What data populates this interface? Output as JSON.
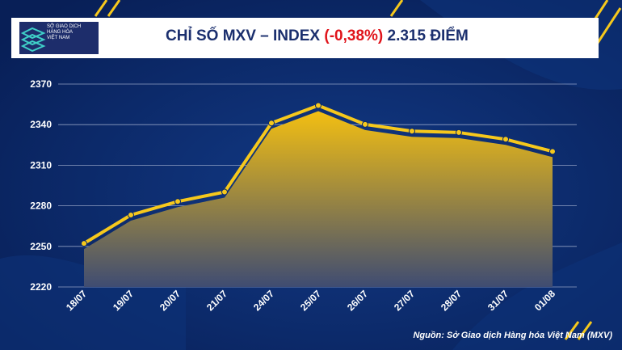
{
  "header": {
    "logo_lines": [
      "SỞ GIAO DỊCH",
      "HÀNG HÓA",
      "VIỆT NAM"
    ],
    "title_prefix": "CHỈ SỐ MXV – INDEX ",
    "title_change": "(-0,38%)",
    "title_suffix": " 2.315 ĐIỂM"
  },
  "source": "Nguồn: Sở Giao dịch Hàng hóa Việt Nam (MXV)",
  "colors": {
    "background": "#0b2a6b",
    "line": "#f6c81c",
    "area_top": "#f3bf12",
    "area_bottom": "#3f4c72",
    "change": "#e0141b",
    "title": "#1b2f6e"
  },
  "chart_data": {
    "type": "line",
    "title": "CHỈ SỐ MXV – INDEX (-0,38%) 2.315 ĐIỂM",
    "categories": [
      "18/07",
      "19/07",
      "20/07",
      "21/07",
      "24/07",
      "25/07",
      "26/07",
      "27/07",
      "28/07",
      "31/07",
      "01/08"
    ],
    "series": [
      {
        "values": [
          2248,
          2269,
          2279,
          2286,
          2337,
          2350,
          2336,
          2331,
          2330,
          2325,
          2316
        ]
      }
    ],
    "yticks": [
      2220,
      2250,
      2280,
      2310,
      2340,
      2370
    ],
    "ylim": [
      2220,
      2370
    ],
    "grid": true,
    "legend": "none"
  }
}
